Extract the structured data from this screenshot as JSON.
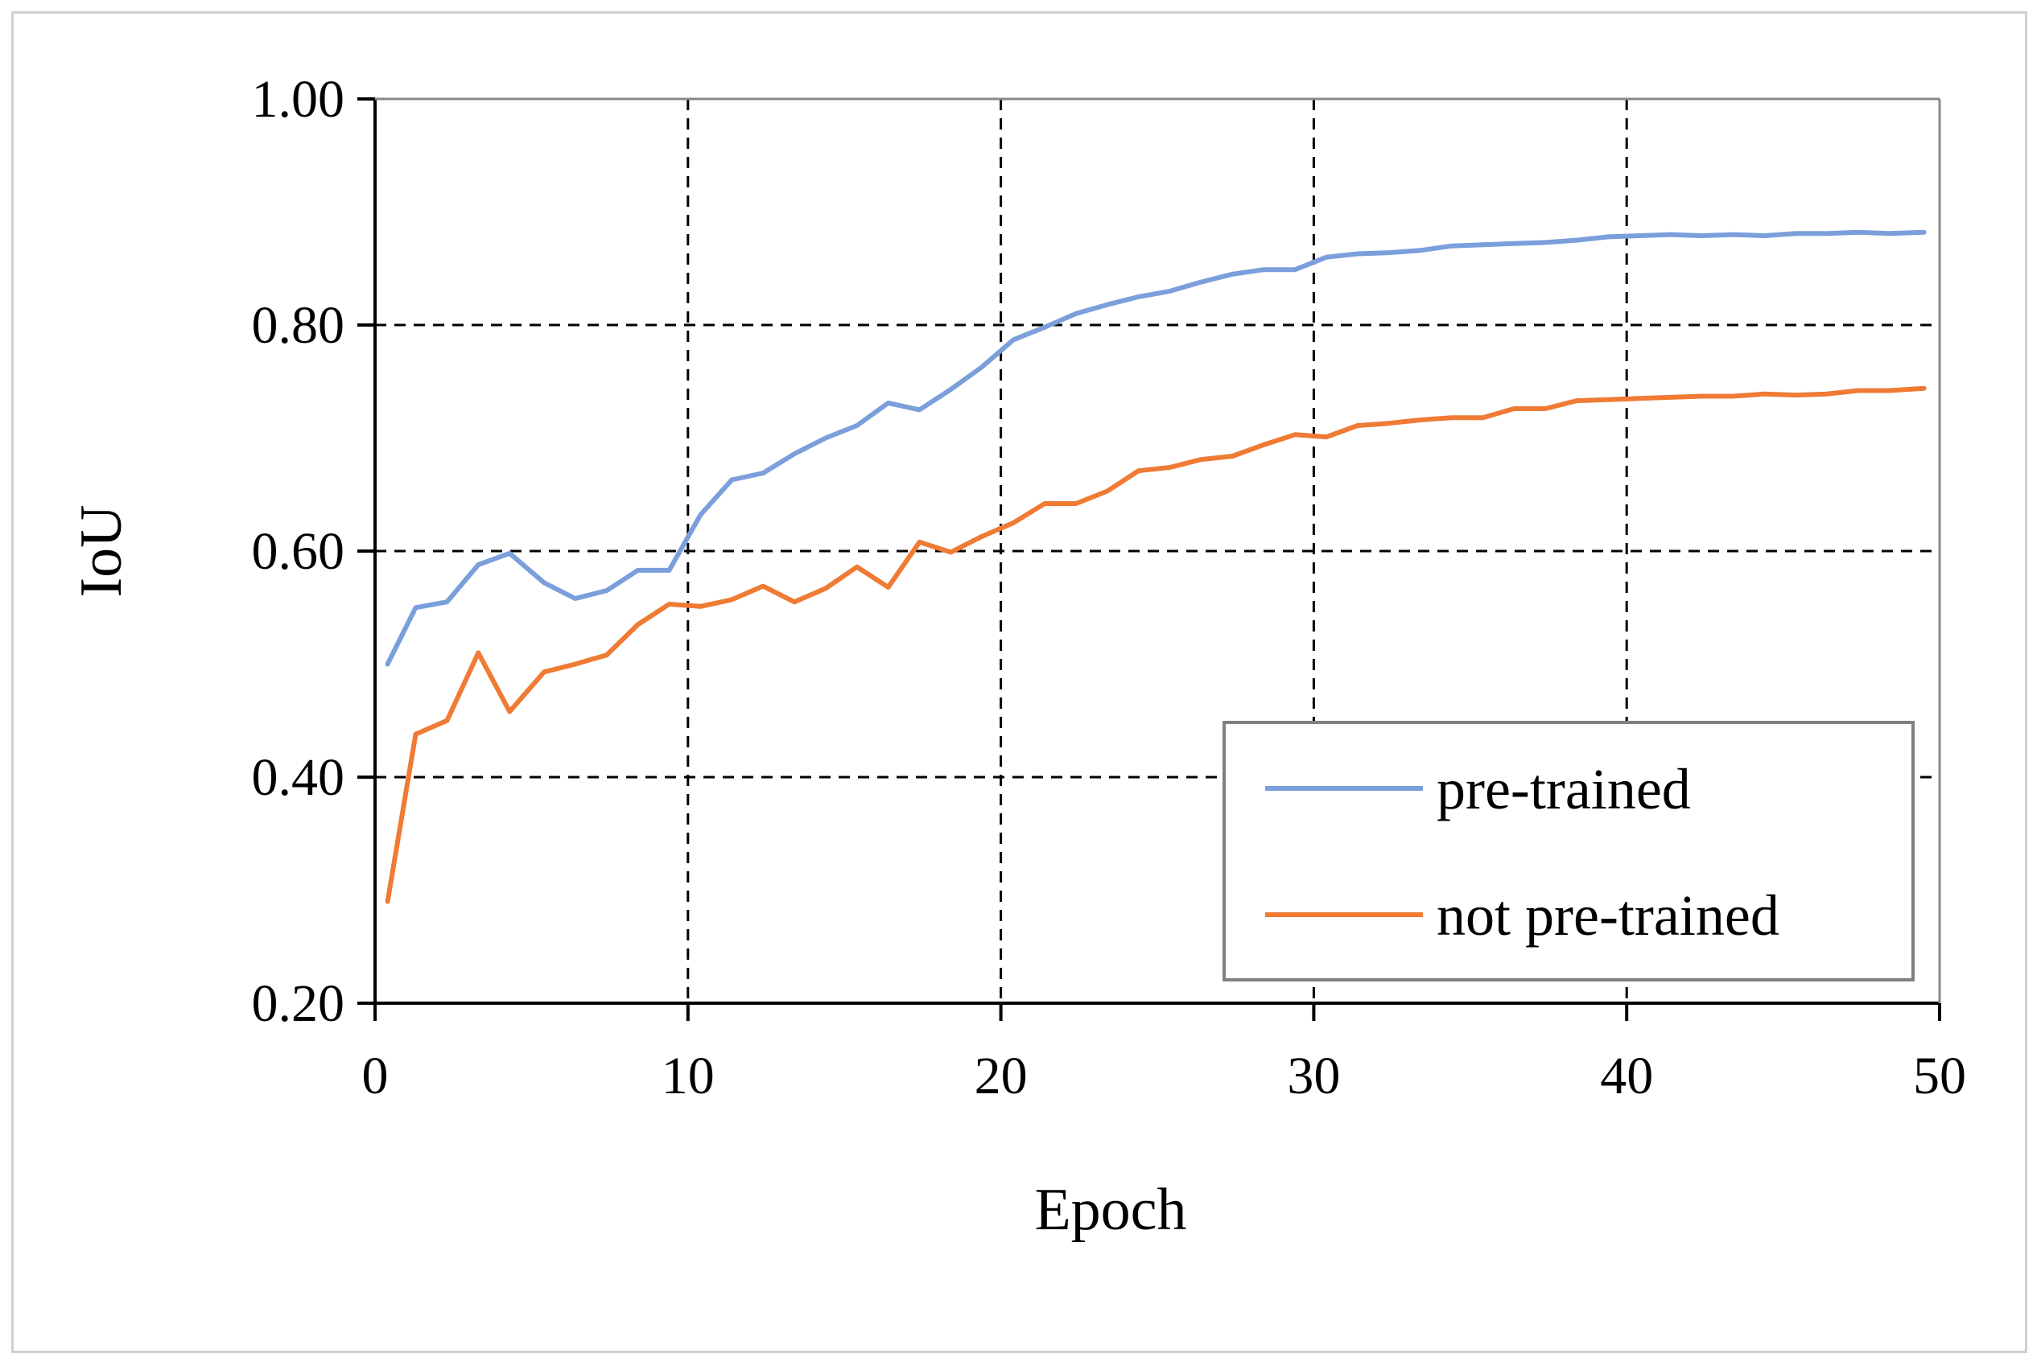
{
  "chart_data": {
    "type": "line",
    "title": "",
    "xlabel": "Epoch",
    "ylabel": "IoU",
    "xlim": [
      0,
      50
    ],
    "ylim": [
      0.2,
      1.0
    ],
    "xticks": [
      0,
      10,
      20,
      30,
      40,
      50
    ],
    "yticks": [
      0.2,
      0.4,
      0.6,
      0.8,
      1.0
    ],
    "xtick_labels": [
      "0",
      "10",
      "20",
      "30",
      "40",
      "50"
    ],
    "ytick_labels": [
      "0.20",
      "0.40",
      "0.60",
      "0.80",
      "1.00"
    ],
    "grid": "dashed",
    "legend_position": "bottom-right",
    "x": [
      0.4,
      1.3,
      2.3,
      3.3,
      4.3,
      5.4,
      6.4,
      7.4,
      8.4,
      9.4,
      10.4,
      11.4,
      12.4,
      13.4,
      14.4,
      15.4,
      16.4,
      17.4,
      18.4,
      19.4,
      20.4,
      21.4,
      22.4,
      23.4,
      24.4,
      25.4,
      26.4,
      27.4,
      28.4,
      29.4,
      30.4,
      31.4,
      32.4,
      33.4,
      34.4,
      35.4,
      36.4,
      37.4,
      38.4,
      39.4,
      40.4,
      41.4,
      42.4,
      43.4,
      44.4,
      45.4,
      46.4,
      47.4,
      48.4,
      49.5
    ],
    "series": [
      {
        "name": "pre-trained",
        "color": "#7b9fdb",
        "values": [
          0.5,
          0.55,
          0.555,
          0.588,
          0.598,
          0.572,
          0.558,
          0.565,
          0.583,
          0.583,
          0.632,
          0.663,
          0.669,
          0.686,
          0.7,
          0.711,
          0.731,
          0.725,
          0.743,
          0.763,
          0.787,
          0.798,
          0.81,
          0.818,
          0.825,
          0.83,
          0.838,
          0.845,
          0.849,
          0.849,
          0.86,
          0.863,
          0.864,
          0.866,
          0.87,
          0.871,
          0.872,
          0.873,
          0.875,
          0.878,
          0.879,
          0.88,
          0.879,
          0.88,
          0.879,
          0.881,
          0.881,
          0.882,
          0.881,
          0.882
        ]
      },
      {
        "name": "not pre-trained",
        "color": "#ef7b34",
        "values": [
          0.29,
          0.438,
          0.45,
          0.51,
          0.458,
          0.493,
          0.5,
          0.508,
          0.535,
          0.553,
          0.551,
          0.557,
          0.569,
          0.555,
          0.567,
          0.586,
          0.568,
          0.608,
          0.599,
          0.613,
          0.625,
          0.642,
          0.642,
          0.653,
          0.671,
          0.674,
          0.681,
          0.684,
          0.694,
          0.703,
          0.701,
          0.711,
          0.713,
          0.716,
          0.718,
          0.718,
          0.726,
          0.726,
          0.733,
          0.734,
          0.735,
          0.736,
          0.737,
          0.737,
          0.739,
          0.738,
          0.739,
          0.742,
          0.742,
          0.744
        ]
      }
    ]
  }
}
